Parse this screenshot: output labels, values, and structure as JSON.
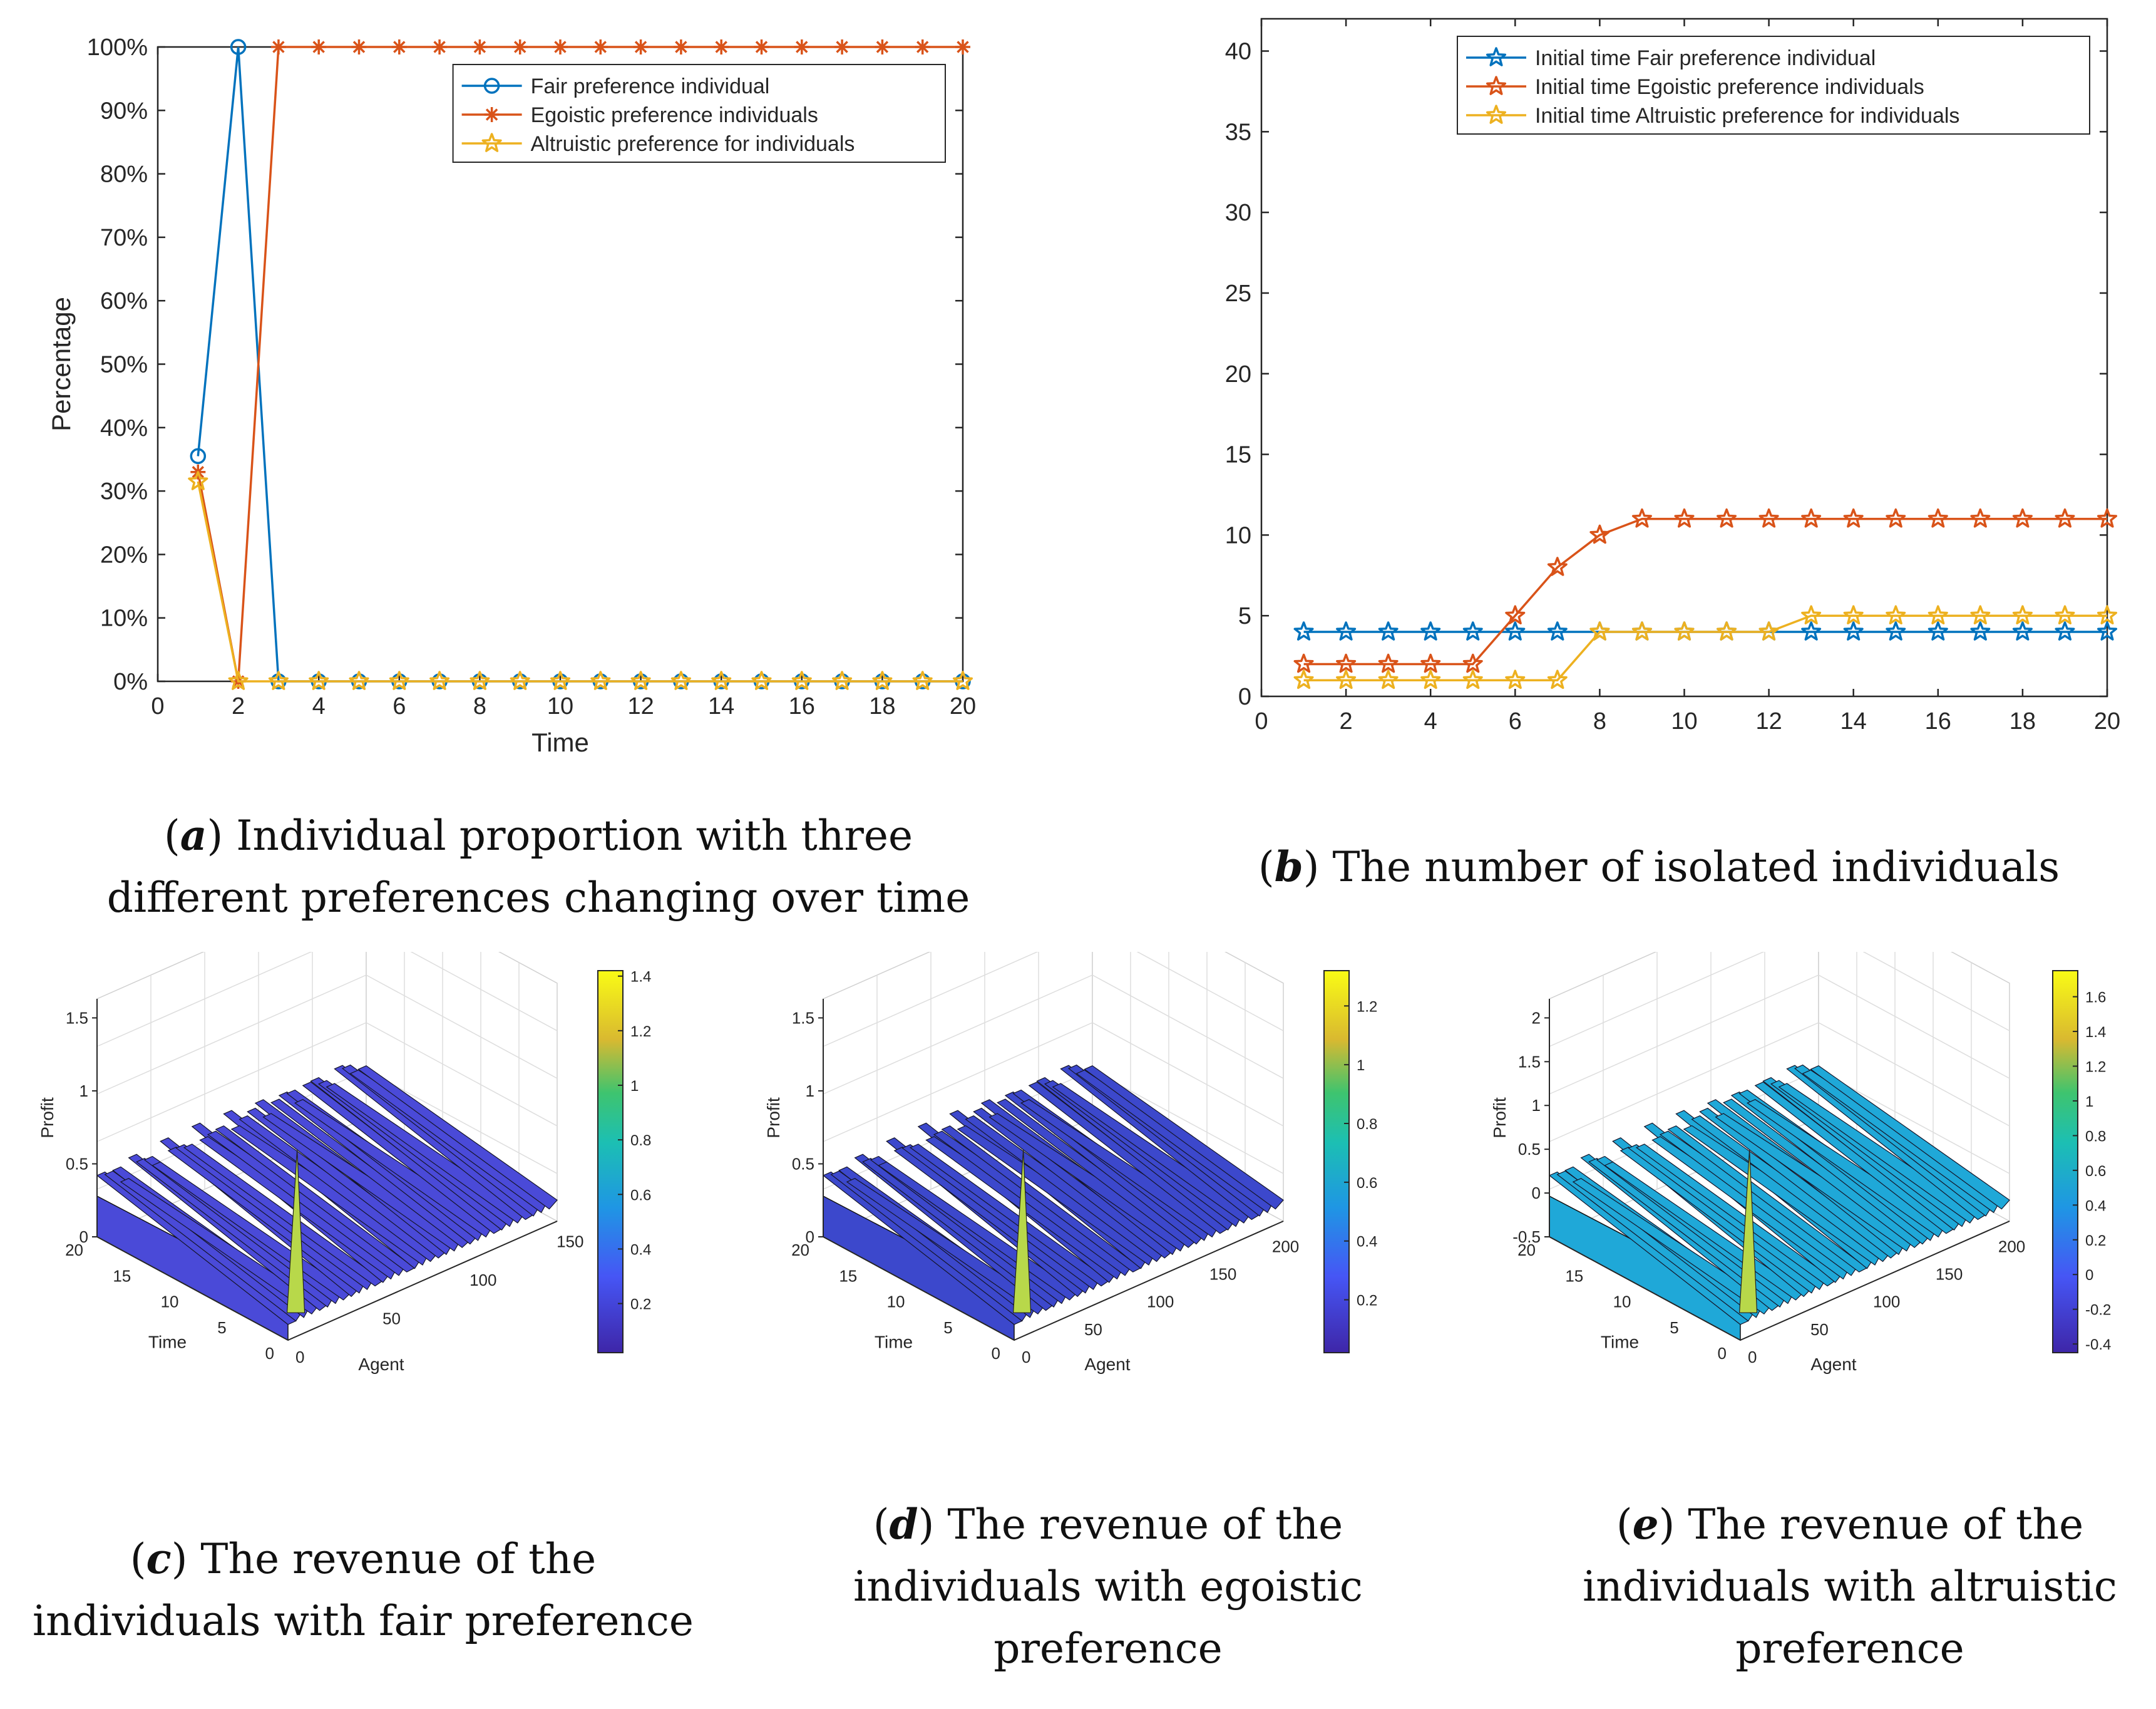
{
  "colors": {
    "fair": "#0072BD",
    "egoistic": "#D95319",
    "altruistic": "#EDB120",
    "axis": "#262626",
    "grid": "#DDDDDD"
  },
  "chart_data": [
    {
      "id": "a",
      "type": "line",
      "caption_letter": "a",
      "caption_text": "Individual proportion with three different preferences changing over time",
      "xlabel": "Time",
      "ylabel": "Percentage",
      "xlim": [
        0,
        20
      ],
      "ylim": [
        0,
        100
      ],
      "xticks": [
        0,
        2,
        4,
        6,
        8,
        10,
        12,
        14,
        16,
        18,
        20
      ],
      "yticks": [
        0,
        10,
        20,
        30,
        40,
        50,
        60,
        70,
        80,
        90,
        100
      ],
      "ytick_labels": [
        "0%",
        "10%",
        "20%",
        "30%",
        "40%",
        "50%",
        "60%",
        "70%",
        "80%",
        "90%",
        "100%"
      ],
      "legend_position": "top-right",
      "x": [
        1,
        2,
        3,
        4,
        5,
        6,
        7,
        8,
        9,
        10,
        11,
        12,
        13,
        14,
        15,
        16,
        17,
        18,
        19,
        20
      ],
      "series": [
        {
          "name": "Fair preference individual",
          "marker": "circle",
          "color_key": "fair",
          "values": [
            35.5,
            100,
            0,
            0,
            0,
            0,
            0,
            0,
            0,
            0,
            0,
            0,
            0,
            0,
            0,
            0,
            0,
            0,
            0,
            0
          ]
        },
        {
          "name": "Egoistic preference individuals",
          "marker": "asterisk",
          "color_key": "egoistic",
          "values": [
            33,
            0,
            100,
            100,
            100,
            100,
            100,
            100,
            100,
            100,
            100,
            100,
            100,
            100,
            100,
            100,
            100,
            100,
            100,
            100
          ]
        },
        {
          "name": "Altruistic preference for individuals",
          "marker": "star",
          "color_key": "altruistic",
          "values": [
            31.5,
            0,
            0,
            0,
            0,
            0,
            0,
            0,
            0,
            0,
            0,
            0,
            0,
            0,
            0,
            0,
            0,
            0,
            0,
            0
          ]
        }
      ]
    },
    {
      "id": "b",
      "type": "line",
      "caption_letter": "b",
      "caption_text": "The number of isolated individuals",
      "xlabel": "",
      "ylabel": "",
      "xlim": [
        0,
        20
      ],
      "ylim": [
        0,
        42
      ],
      "xticks": [
        0,
        2,
        4,
        6,
        8,
        10,
        12,
        14,
        16,
        18,
        20
      ],
      "yticks": [
        0,
        5,
        10,
        15,
        20,
        25,
        30,
        35,
        40
      ],
      "ytick_labels": [
        "0",
        "5",
        "10",
        "15",
        "20",
        "25",
        "30",
        "35",
        "40"
      ],
      "legend_position": "top-right",
      "x": [
        1,
        2,
        3,
        4,
        5,
        6,
        7,
        8,
        9,
        10,
        11,
        12,
        13,
        14,
        15,
        16,
        17,
        18,
        19,
        20
      ],
      "series": [
        {
          "name": "Initial time Fair preference individual",
          "marker": "star",
          "color_key": "fair",
          "values": [
            4,
            4,
            4,
            4,
            4,
            4,
            4,
            4,
            4,
            4,
            4,
            4,
            4,
            4,
            4,
            4,
            4,
            4,
            4,
            4
          ]
        },
        {
          "name": "Initial time Egoistic preference individuals",
          "marker": "star",
          "color_key": "egoistic",
          "values": [
            2,
            2,
            2,
            2,
            2,
            5,
            8,
            10,
            11,
            11,
            11,
            11,
            11,
            11,
            11,
            11,
            11,
            11,
            11,
            11
          ]
        },
        {
          "name": "Initial time Altruistic preference for individuals",
          "marker": "star",
          "color_key": "altruistic",
          "values": [
            1,
            1,
            1,
            1,
            1,
            1,
            1,
            4,
            4,
            4,
            4,
            4,
            5,
            5,
            5,
            5,
            5,
            5,
            5,
            5
          ]
        }
      ]
    },
    {
      "id": "c",
      "type": "surface",
      "caption_letter": "c",
      "caption_text": "The revenue of the individuals with fair preference",
      "zlabel": "Profit",
      "ylabel": "Time",
      "xlabel": "Agent",
      "zticks": [
        "0",
        "0.5",
        "1",
        "1.5"
      ],
      "time_ticks": [
        "0",
        "5",
        "10",
        "15",
        "20"
      ],
      "agent_ticks": [
        "0",
        "50",
        "100",
        "150"
      ],
      "colorbar_range": [
        0.02,
        1.42
      ],
      "colorbar_ticks": [
        "0.2",
        "0.4",
        "0.6",
        "0.8",
        "1",
        "1.2",
        "1.4"
      ],
      "surface_color": "#4a4ad8"
    },
    {
      "id": "d",
      "type": "surface",
      "caption_letter": "d",
      "caption_text": "The revenue of the individuals with egoistic preference",
      "zlabel": "Profit",
      "ylabel": "Time",
      "xlabel": "Agent",
      "zticks": [
        "0",
        "0.5",
        "1",
        "1.5"
      ],
      "time_ticks": [
        "0",
        "5",
        "10",
        "15",
        "20"
      ],
      "agent_ticks": [
        "0",
        "50",
        "100",
        "150",
        "200"
      ],
      "colorbar_range": [
        0.02,
        1.32
      ],
      "colorbar_ticks": [
        "0.2",
        "0.4",
        "0.6",
        "0.8",
        "1",
        "1.2"
      ],
      "surface_color": "#3c48cc"
    },
    {
      "id": "e",
      "type": "surface",
      "caption_letter": "e",
      "caption_text": "The revenue of the individuals with altruistic preference",
      "zlabel": "Profit",
      "ylabel": "Time",
      "xlabel": "Agent",
      "zticks": [
        "-0.5",
        "0",
        "0.5",
        "1",
        "1.5",
        "2"
      ],
      "time_ticks": [
        "0",
        "5",
        "10",
        "15",
        "20"
      ],
      "agent_ticks": [
        "0",
        "50",
        "100",
        "150",
        "200"
      ],
      "colorbar_range": [
        -0.45,
        1.75
      ],
      "colorbar_ticks": [
        "-0.4",
        "-0.2",
        "0",
        "0.2",
        "0.4",
        "0.6",
        "0.8",
        "1",
        "1.2",
        "1.4",
        "1.6"
      ],
      "surface_color": "#1fa8d8"
    }
  ]
}
